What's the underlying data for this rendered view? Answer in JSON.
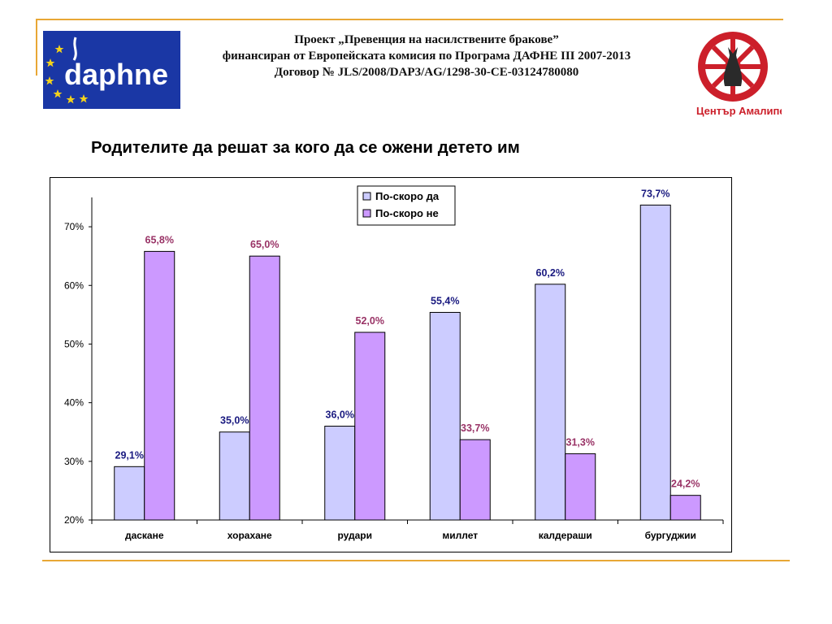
{
  "header": {
    "line1": "Проект „Превенция на насилствените бракове”",
    "line2": "финансиран от Европейската комисия по Програма ДАФНЕ III 2007-2013",
    "line3": "Договор № JLS/2008/DAP3/AG/1298-30-CE-03124780080"
  },
  "logos": {
    "daphne": {
      "text": "daphne",
      "icon": "eu-stars-daphne-logo"
    },
    "amalipe": {
      "text": "Център Амалипе",
      "icon": "amalipe-wheel-logo"
    }
  },
  "page_title": "Родителите да решат за кого да се ожени детето им",
  "colors": {
    "yes": "#ccccff",
    "no": "#cc99ff",
    "yes_label": "#1a1a80",
    "no_label": "#993366",
    "accent_rule": "#e8a735",
    "daphne_bg": "#1a37a5",
    "amalipe_red": "#cc1f2a"
  },
  "chart_data": {
    "type": "bar",
    "categories": [
      "даскане",
      "хорахане",
      "рудари",
      "миллет",
      "калдераши",
      "бургуджии"
    ],
    "series": [
      {
        "name": "По-скоро да",
        "values": [
          29.1,
          35.0,
          36.0,
          55.4,
          60.2,
          73.7
        ],
        "labels": [
          "29,1%",
          "35,0%",
          "36,0%",
          "55,4%",
          "60,2%",
          "73,7%"
        ]
      },
      {
        "name": "По-скоро не",
        "values": [
          65.8,
          65.0,
          52.0,
          33.7,
          31.3,
          24.2
        ],
        "labels": [
          "65,8%",
          "65,0%",
          "52,0%",
          "33,7%",
          "31,3%",
          "24,2%"
        ]
      }
    ],
    "ylim": [
      20,
      75
    ],
    "yticks": [
      20,
      30,
      40,
      50,
      60,
      70
    ],
    "ytick_labels": [
      "20%",
      "30%",
      "40%",
      "50%",
      "60%",
      "70%"
    ],
    "grid": false,
    "legend": "top-center"
  }
}
